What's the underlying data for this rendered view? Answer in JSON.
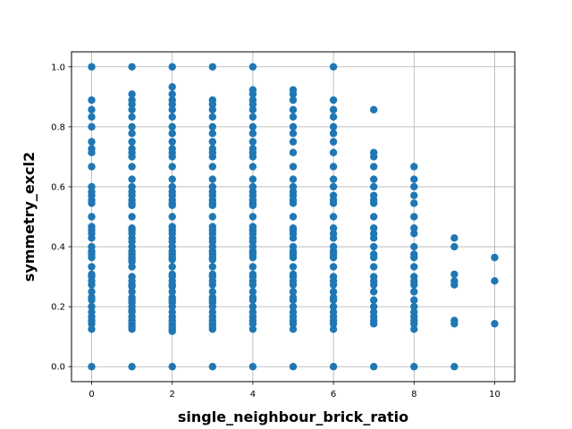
{
  "chart_data": {
    "type": "scatter",
    "title": "",
    "xlabel": "single_neighbour_brick_ratio",
    "ylabel": "symmetry_excl2",
    "xlim": [
      -0.5,
      10.5
    ],
    "ylim": [
      -0.05,
      1.05
    ],
    "xticks": [
      0,
      2,
      4,
      6,
      8,
      10
    ],
    "yticks": [
      0.0,
      0.2,
      0.4,
      0.6,
      0.8,
      1.0
    ],
    "xtick_labels": [
      "0",
      "2",
      "4",
      "6",
      "8",
      "10"
    ],
    "ytick_labels": [
      "0.0",
      "0.2",
      "0.4",
      "0.6",
      "0.8",
      "1.0"
    ],
    "grid": true,
    "marker_color": "#1f77b4",
    "series": [
      {
        "columns": [
          {
            "x": 0,
            "y": [
              0.0,
              1.0,
              0.889,
              0.857,
              0.833,
              0.8,
              0.75,
              0.727,
              0.714,
              0.667,
              0.6,
              0.583,
              0.571,
              0.556,
              0.545,
              0.5,
              0.467,
              0.455,
              0.444,
              0.429,
              0.4,
              0.385,
              0.375,
              0.364,
              0.333,
              0.308,
              0.3,
              0.286,
              0.273,
              0.25,
              0.231,
              0.222,
              0.2,
              0.182,
              0.167,
              0.154,
              0.143,
              0.125
            ]
          },
          {
            "x": 1,
            "y": [
              0.0,
              1.0,
              0.909,
              0.889,
              0.875,
              0.857,
              0.833,
              0.8,
              0.778,
              0.75,
              0.727,
              0.714,
              0.7,
              0.667,
              0.625,
              0.6,
              0.583,
              0.571,
              0.556,
              0.545,
              0.538,
              0.5,
              0.462,
              0.455,
              0.444,
              0.429,
              0.417,
              0.4,
              0.385,
              0.375,
              0.364,
              0.357,
              0.35,
              0.333,
              0.3,
              0.286,
              0.273,
              0.267,
              0.25,
              0.231,
              0.222,
              0.214,
              0.2,
              0.188,
              0.182,
              0.167,
              0.154,
              0.143,
              0.133,
              0.125
            ]
          },
          {
            "x": 2,
            "y": [
              0.0,
              1.0,
              0.933,
              0.909,
              0.889,
              0.875,
              0.857,
              0.833,
              0.8,
              0.778,
              0.75,
              0.727,
              0.714,
              0.7,
              0.667,
              0.625,
              0.6,
              0.583,
              0.571,
              0.556,
              0.545,
              0.538,
              0.5,
              0.467,
              0.455,
              0.444,
              0.429,
              0.417,
              0.4,
              0.385,
              0.375,
              0.364,
              0.357,
              0.333,
              0.308,
              0.3,
              0.286,
              0.273,
              0.267,
              0.25,
              0.231,
              0.222,
              0.214,
              0.2,
              0.182,
              0.167,
              0.154,
              0.143,
              0.133,
              0.125,
              0.118
            ]
          },
          {
            "x": 3,
            "y": [
              0.0,
              1.0,
              0.889,
              0.875,
              0.857,
              0.833,
              0.8,
              0.778,
              0.75,
              0.727,
              0.714,
              0.7,
              0.667,
              0.625,
              0.6,
              0.583,
              0.571,
              0.556,
              0.545,
              0.538,
              0.5,
              0.467,
              0.455,
              0.444,
              0.429,
              0.417,
              0.4,
              0.385,
              0.375,
              0.364,
              0.357,
              0.333,
              0.308,
              0.3,
              0.286,
              0.273,
              0.25,
              0.231,
              0.222,
              0.214,
              0.2,
              0.182,
              0.167,
              0.154,
              0.143,
              0.133,
              0.125
            ]
          },
          {
            "x": 4,
            "y": [
              0.0,
              1.0,
              0.923,
              0.909,
              0.889,
              0.875,
              0.857,
              0.833,
              0.8,
              0.778,
              0.75,
              0.727,
              0.714,
              0.7,
              0.667,
              0.625,
              0.6,
              0.583,
              0.571,
              0.556,
              0.545,
              0.538,
              0.5,
              0.467,
              0.455,
              0.444,
              0.429,
              0.417,
              0.4,
              0.385,
              0.375,
              0.364,
              0.333,
              0.308,
              0.3,
              0.286,
              0.273,
              0.25,
              0.231,
              0.222,
              0.2,
              0.182,
              0.167,
              0.154,
              0.143,
              0.125
            ]
          },
          {
            "x": 5,
            "y": [
              0.0,
              0.923,
              0.909,
              0.889,
              0.857,
              0.833,
              0.8,
              0.778,
              0.75,
              0.714,
              0.667,
              0.625,
              0.6,
              0.583,
              0.571,
              0.556,
              0.545,
              0.5,
              0.462,
              0.455,
              0.444,
              0.429,
              0.4,
              0.385,
              0.375,
              0.364,
              0.333,
              0.308,
              0.3,
              0.286,
              0.273,
              0.25,
              0.231,
              0.222,
              0.2,
              0.182,
              0.167,
              0.154,
              0.143,
              0.125
            ]
          },
          {
            "x": 6,
            "y": [
              0.0,
              1.0,
              0.889,
              0.857,
              0.833,
              0.8,
              0.778,
              0.75,
              0.714,
              0.667,
              0.625,
              0.6,
              0.571,
              0.556,
              0.545,
              0.5,
              0.462,
              0.444,
              0.429,
              0.4,
              0.385,
              0.375,
              0.364,
              0.333,
              0.3,
              0.286,
              0.273,
              0.25,
              0.231,
              0.222,
              0.2,
              0.182,
              0.167,
              0.154,
              0.143,
              0.125
            ]
          },
          {
            "x": 7,
            "y": [
              0.0,
              0.857,
              0.714,
              0.7,
              0.667,
              0.625,
              0.6,
              0.571,
              0.556,
              0.545,
              0.5,
              0.462,
              0.444,
              0.429,
              0.4,
              0.375,
              0.364,
              0.333,
              0.3,
              0.286,
              0.273,
              0.25,
              0.222,
              0.2,
              0.182,
              0.167,
              0.154,
              0.143
            ]
          },
          {
            "x": 8,
            "y": [
              0.0,
              0.667,
              0.625,
              0.6,
              0.571,
              0.545,
              0.5,
              0.462,
              0.444,
              0.4,
              0.375,
              0.364,
              0.333,
              0.3,
              0.286,
              0.273,
              0.25,
              0.222,
              0.2,
              0.182,
              0.167,
              0.154,
              0.143,
              0.125
            ]
          },
          {
            "x": 9,
            "y": [
              0.0,
              0.429,
              0.4,
              0.308,
              0.286,
              0.273,
              0.154,
              0.143
            ]
          },
          {
            "x": 10,
            "y": [
              0.364,
              0.286,
              0.143
            ]
          }
        ]
      }
    ]
  }
}
